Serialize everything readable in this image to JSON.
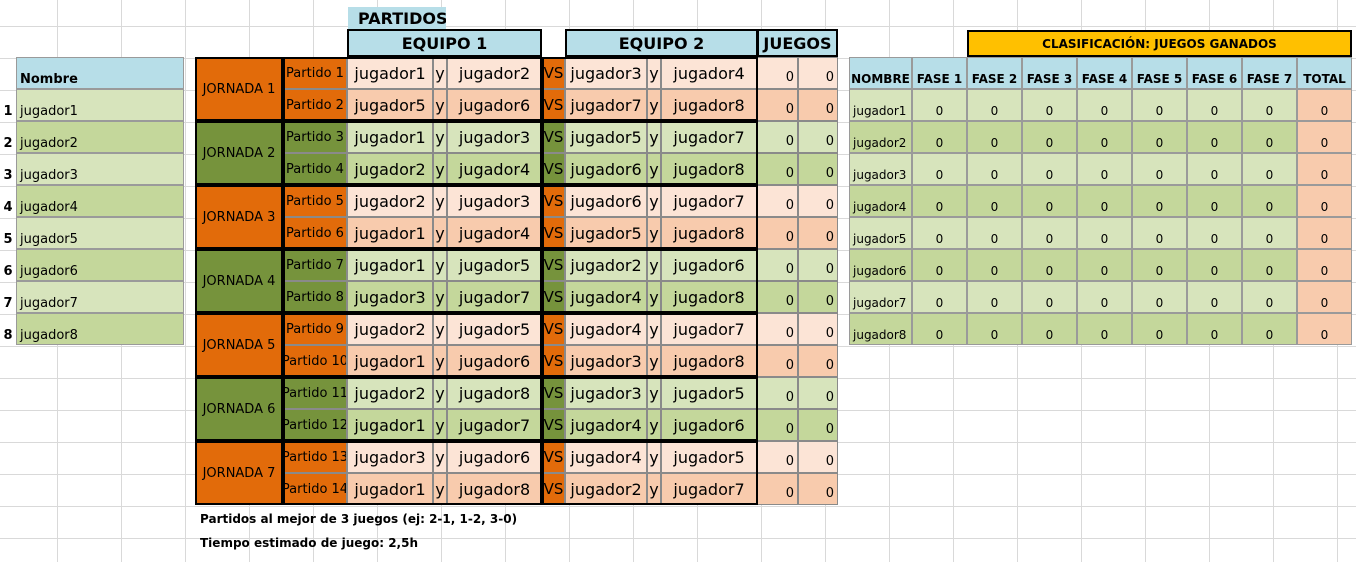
{
  "players_table": {
    "header": "Nombre",
    "rows": [
      {
        "num": "1",
        "name": "jugador1"
      },
      {
        "num": "2",
        "name": "jugador2"
      },
      {
        "num": "3",
        "name": "jugador3"
      },
      {
        "num": "4",
        "name": "jugador4"
      },
      {
        "num": "5",
        "name": "jugador5"
      },
      {
        "num": "6",
        "name": "jugador6"
      },
      {
        "num": "7",
        "name": "jugador7"
      },
      {
        "num": "8",
        "name": "jugador8"
      }
    ]
  },
  "matches": {
    "title": "PARTIDOS",
    "team1_header": "EQUIPO 1",
    "team2_header": "EQUIPO 2",
    "games_header": "JUEGOS",
    "joiner": "y",
    "versus": "VS",
    "jornadas": [
      {
        "label": "JORNADA 1",
        "partidos": [
          {
            "label": "Partido 1",
            "t1a": "jugador1",
            "t1b": "jugador2",
            "t2a": "jugador3",
            "t2b": "jugador4",
            "g1": "0",
            "g2": "0"
          },
          {
            "label": "Partido 2",
            "t1a": "jugador5",
            "t1b": "jugador6",
            "t2a": "jugador7",
            "t2b": "jugador8",
            "g1": "0",
            "g2": "0"
          }
        ]
      },
      {
        "label": "JORNADA 2",
        "partidos": [
          {
            "label": "Partido 3",
            "t1a": "jugador1",
            "t1b": "jugador3",
            "t2a": "jugador5",
            "t2b": "jugador7",
            "g1": "0",
            "g2": "0"
          },
          {
            "label": "Partido 4",
            "t1a": "jugador2",
            "t1b": "jugador4",
            "t2a": "jugador6",
            "t2b": "jugador8",
            "g1": "0",
            "g2": "0"
          }
        ]
      },
      {
        "label": "JORNADA 3",
        "partidos": [
          {
            "label": "Partido 5",
            "t1a": "jugador2",
            "t1b": "jugador3",
            "t2a": "jugador6",
            "t2b": "jugador7",
            "g1": "0",
            "g2": "0"
          },
          {
            "label": "Partido 6",
            "t1a": "jugador1",
            "t1b": "jugador4",
            "t2a": "jugador5",
            "t2b": "jugador8",
            "g1": "0",
            "g2": "0"
          }
        ]
      },
      {
        "label": "JORNADA 4",
        "partidos": [
          {
            "label": "Partido 7",
            "t1a": "jugador1",
            "t1b": "jugador5",
            "t2a": "jugador2",
            "t2b": "jugador6",
            "g1": "0",
            "g2": "0"
          },
          {
            "label": "Partido 8",
            "t1a": "jugador3",
            "t1b": "jugador7",
            "t2a": "jugador4",
            "t2b": "jugador8",
            "g1": "0",
            "g2": "0"
          }
        ]
      },
      {
        "label": "JORNADA 5",
        "partidos": [
          {
            "label": "Partido 9",
            "t1a": "jugador2",
            "t1b": "jugador5",
            "t2a": "jugador4",
            "t2b": "jugador7",
            "g1": "0",
            "g2": "0"
          },
          {
            "label": "Partido 10",
            "t1a": "jugador1",
            "t1b": "jugador6",
            "t2a": "jugador3",
            "t2b": "jugador8",
            "g1": "0",
            "g2": "0"
          }
        ]
      },
      {
        "label": "JORNADA 6",
        "partidos": [
          {
            "label": "Partido 11",
            "t1a": "jugador2",
            "t1b": "jugador8",
            "t2a": "jugador3",
            "t2b": "jugador5",
            "g1": "0",
            "g2": "0"
          },
          {
            "label": "Partido 12",
            "t1a": "jugador1",
            "t1b": "jugador7",
            "t2a": "jugador4",
            "t2b": "jugador6",
            "g1": "0",
            "g2": "0"
          }
        ]
      },
      {
        "label": "JORNADA 7",
        "partidos": [
          {
            "label": "Partido 13",
            "t1a": "jugador3",
            "t1b": "jugador6",
            "t2a": "jugador4",
            "t2b": "jugador5",
            "g1": "0",
            "g2": "0"
          },
          {
            "label": "Partido 14",
            "t1a": "jugador1",
            "t1b": "jugador8",
            "t2a": "jugador2",
            "t2b": "jugador7",
            "g1": "0",
            "g2": "0"
          }
        ]
      }
    ],
    "note1": "Partidos al mejor de 3 juegos (ej: 2-1, 1-2, 3-0)",
    "note2": "Tiempo estimado de juego: 2,5h"
  },
  "standings": {
    "title": "CLASIFICACIÓN: JUEGOS GANADOS",
    "headers": [
      "NOMBRE",
      "FASE 1",
      "FASE 2",
      "FASE 3",
      "FASE 4",
      "FASE 5",
      "FASE 6",
      "FASE 7",
      "TOTAL"
    ],
    "rows": [
      {
        "name": "jugador1",
        "values": [
          "0",
          "0",
          "0",
          "0",
          "0",
          "0",
          "0",
          "0"
        ]
      },
      {
        "name": "jugador2",
        "values": [
          "0",
          "0",
          "0",
          "0",
          "0",
          "0",
          "0",
          "0"
        ]
      },
      {
        "name": "jugador3",
        "values": [
          "0",
          "0",
          "0",
          "0",
          "0",
          "0",
          "0",
          "0"
        ]
      },
      {
        "name": "jugador4",
        "values": [
          "0",
          "0",
          "0",
          "0",
          "0",
          "0",
          "0",
          "0"
        ]
      },
      {
        "name": "jugador5",
        "values": [
          "0",
          "0",
          "0",
          "0",
          "0",
          "0",
          "0",
          "0"
        ]
      },
      {
        "name": "jugador6",
        "values": [
          "0",
          "0",
          "0",
          "0",
          "0",
          "0",
          "0",
          "0"
        ]
      },
      {
        "name": "jugador7",
        "values": [
          "0",
          "0",
          "0",
          "0",
          "0",
          "0",
          "0",
          "0"
        ]
      },
      {
        "name": "jugador8",
        "values": [
          "0",
          "0",
          "0",
          "0",
          "0",
          "0",
          "0",
          "0"
        ]
      }
    ]
  },
  "colors": {
    "orange_dark": "#e26b0a",
    "green_dark": "#76933c",
    "orange_light": "#fce4d6",
    "orange_mid": "#f8cbad",
    "green_light": "#d7e4bc",
    "green_mid": "#c4d79b",
    "header_blue": "#b7dee8",
    "header_gold": "#ffc000"
  }
}
